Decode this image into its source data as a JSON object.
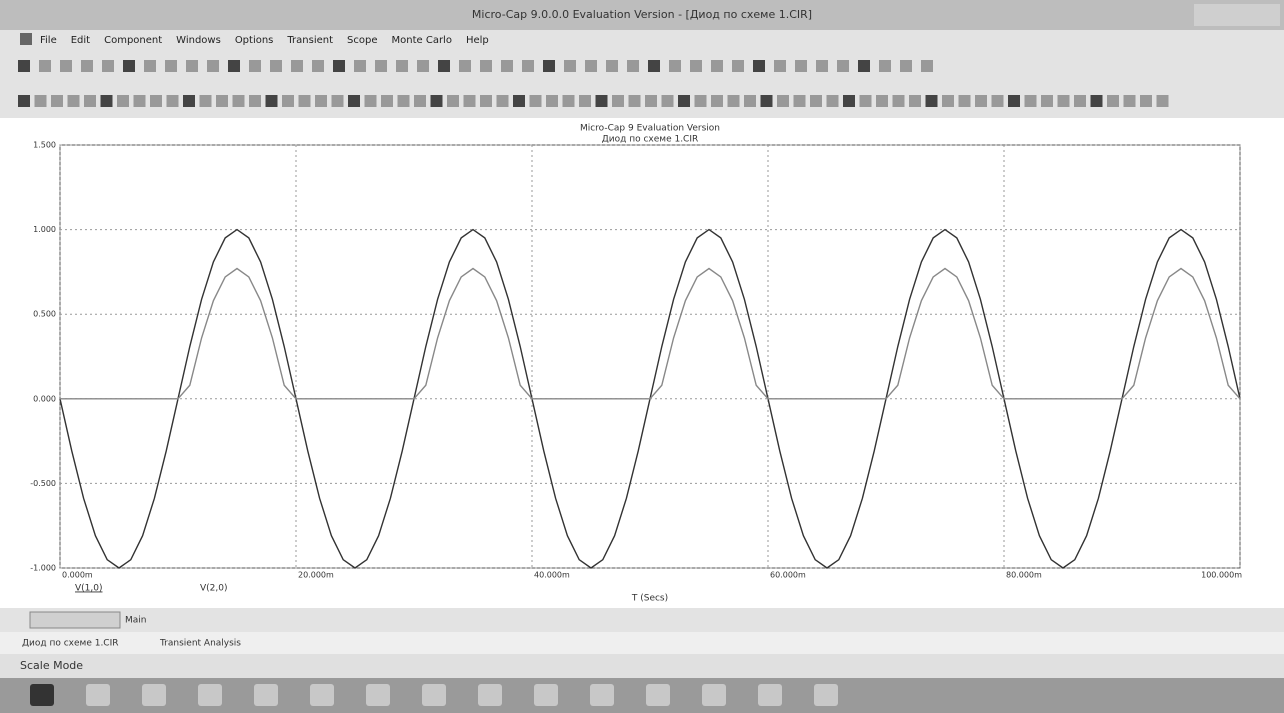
{
  "window": {
    "title": "Micro-Cap 9.0.0.0 Evaluation Version - [Диод по схеме 1.CIR]",
    "menu": [
      "File",
      "Edit",
      "Component",
      "Windows",
      "Options",
      "Transient",
      "Scope",
      "Monte Carlo",
      "Help"
    ],
    "tabs": [
      "Main",
      "Диод по схеме 1.CIR",
      "Transient Analysis"
    ],
    "status": "Scale Mode"
  },
  "chart_data": {
    "type": "line",
    "title": "Micro-Cap 9 Evaluation Version",
    "subtitle": "Диод по схеме 1.CIR",
    "x_label": "T (Secs)",
    "x": [
      0,
      0.001,
      0.002,
      0.003,
      0.004,
      0.005,
      0.006,
      0.007,
      0.008,
      0.009,
      0.01,
      0.011,
      0.012,
      0.013,
      0.014,
      0.015,
      0.016,
      0.017,
      0.018,
      0.019,
      0.02,
      0.021,
      0.022,
      0.023,
      0.024,
      0.025,
      0.026,
      0.027,
      0.028,
      0.029,
      0.03,
      0.031,
      0.032,
      0.033,
      0.034,
      0.035,
      0.036,
      0.037,
      0.038,
      0.039,
      0.04,
      0.041,
      0.042,
      0.043,
      0.044,
      0.045,
      0.046,
      0.047,
      0.048,
      0.049,
      0.05,
      0.051,
      0.052,
      0.053,
      0.054,
      0.055,
      0.056,
      0.057,
      0.058,
      0.059,
      0.06,
      0.061,
      0.062,
      0.063,
      0.064,
      0.065,
      0.066,
      0.067,
      0.068,
      0.069,
      0.07,
      0.071,
      0.072,
      0.073,
      0.074,
      0.075,
      0.076,
      0.077,
      0.078,
      0.079,
      0.08,
      0.081,
      0.082,
      0.083,
      0.084,
      0.085,
      0.086,
      0.087,
      0.088,
      0.089,
      0.09,
      0.091,
      0.092,
      0.093,
      0.094,
      0.095,
      0.096,
      0.097,
      0.098,
      0.099,
      0.1
    ],
    "series": [
      {
        "name": "V(1,0)",
        "color": "#333333",
        "values": [
          0,
          -0.309,
          -0.588,
          -0.809,
          -0.951,
          -1,
          -0.951,
          -0.809,
          -0.588,
          -0.309,
          0,
          0.309,
          0.588,
          0.809,
          0.951,
          1,
          0.951,
          0.809,
          0.588,
          0.309,
          0,
          -0.309,
          -0.588,
          -0.809,
          -0.951,
          -1,
          -0.951,
          -0.809,
          -0.588,
          -0.309,
          0,
          0.309,
          0.588,
          0.809,
          0.951,
          1,
          0.951,
          0.809,
          0.588,
          0.309,
          0,
          -0.309,
          -0.588,
          -0.809,
          -0.951,
          -1,
          -0.951,
          -0.809,
          -0.588,
          -0.309,
          0,
          0.309,
          0.588,
          0.809,
          0.951,
          1,
          0.951,
          0.809,
          0.588,
          0.309,
          0,
          -0.309,
          -0.588,
          -0.809,
          -0.951,
          -1,
          -0.951,
          -0.809,
          -0.588,
          -0.309,
          0,
          0.309,
          0.588,
          0.809,
          0.951,
          1,
          0.951,
          0.809,
          0.588,
          0.309,
          0,
          -0.309,
          -0.588,
          -0.809,
          -0.951,
          -1,
          -0.951,
          -0.809,
          -0.588,
          -0.309,
          0,
          0.309,
          0.588,
          0.809,
          0.951,
          1,
          0.951,
          0.809,
          0.588,
          0.309,
          0
        ]
      },
      {
        "name": "V(2,0)",
        "color": "#888888",
        "values": [
          0,
          0,
          0,
          0,
          0,
          0,
          0,
          0,
          0,
          0,
          0,
          0.08,
          0.36,
          0.58,
          0.72,
          0.77,
          0.72,
          0.58,
          0.36,
          0.08,
          0,
          0,
          0,
          0,
          0,
          0,
          0,
          0,
          0,
          0,
          0,
          0.08,
          0.36,
          0.58,
          0.72,
          0.77,
          0.72,
          0.58,
          0.36,
          0.08,
          0,
          0,
          0,
          0,
          0,
          0,
          0,
          0,
          0,
          0,
          0,
          0.08,
          0.36,
          0.58,
          0.72,
          0.77,
          0.72,
          0.58,
          0.36,
          0.08,
          0,
          0,
          0,
          0,
          0,
          0,
          0,
          0,
          0,
          0,
          0,
          0.08,
          0.36,
          0.58,
          0.72,
          0.77,
          0.72,
          0.58,
          0.36,
          0.08,
          0,
          0,
          0,
          0,
          0,
          0,
          0,
          0,
          0,
          0,
          0,
          0.08,
          0.36,
          0.58,
          0.72,
          0.77,
          0.72,
          0.58,
          0.36,
          0.08,
          0
        ]
      }
    ],
    "xlim": [
      0,
      0.1
    ],
    "xticks": [
      {
        "value": 0,
        "label": "0.000m"
      },
      {
        "value": 0.02,
        "label": "20.000m"
      },
      {
        "value": 0.04,
        "label": "40.000m"
      },
      {
        "value": 0.06,
        "label": "60.000m"
      },
      {
        "value": 0.08,
        "label": "80.000m"
      },
      {
        "value": 0.1,
        "label": "100.000m"
      }
    ],
    "ylim": [
      -1,
      1.5
    ],
    "yticks": [
      {
        "value": -1,
        "label": "-1.000"
      },
      {
        "value": -0.5,
        "label": "-0.500"
      },
      {
        "value": 0,
        "label": "0.000"
      },
      {
        "value": 0.5,
        "label": "0.500"
      },
      {
        "value": 1,
        "label": "1.000"
      },
      {
        "value": 1.5,
        "label": "1.500"
      }
    ],
    "grid": true
  }
}
